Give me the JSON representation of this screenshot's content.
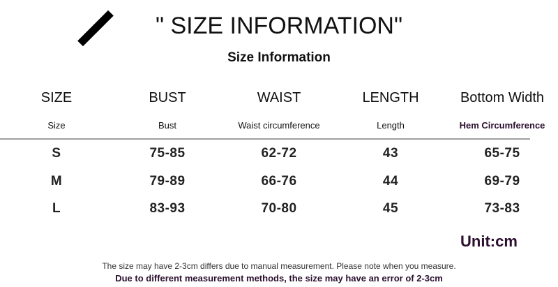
{
  "title": "\" SIZE INFORMATION\"",
  "subtitle": "Size Information",
  "colors": {
    "accent": "#2b0f2e",
    "divider": "#a0a0a0"
  },
  "table": {
    "headers": [
      "SIZE",
      "BUST",
      "WAIST",
      "LENGTH",
      "Bottom Width"
    ],
    "subheaders": [
      "Size",
      "Bust",
      "Waist circumference",
      "Length",
      "Hem Circumference"
    ],
    "rows": [
      [
        "S",
        "75-85",
        "62-72",
        "43",
        "65-75"
      ],
      [
        "M",
        "79-89",
        "66-76",
        "44",
        "69-79"
      ],
      [
        "L",
        "83-93",
        "70-80",
        "45",
        "73-83"
      ]
    ]
  },
  "unit": "Unit:cm",
  "notes": [
    "The size may have 2-3cm differs due to manual measurement. Please note when you measure.",
    "Due to different measurement methods, the size may have an error of 2-3cm"
  ]
}
